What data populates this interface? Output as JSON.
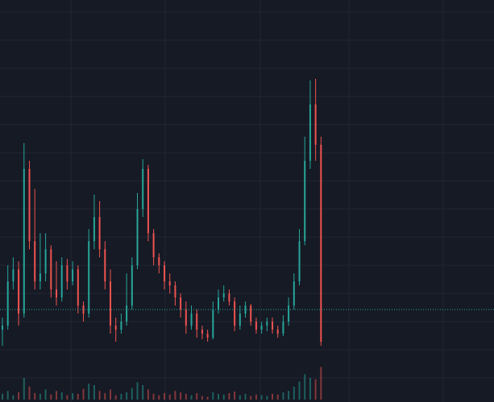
{
  "chart_data": {
    "type": "candlestick",
    "xlim": [
      -0.448,
      91.04
    ],
    "xticks": [
      12.69,
      30.15,
      47.76,
      64.18,
      81.64
    ],
    "ylim": [
      0,
      500
    ],
    "yticks": [
      30,
      65,
      100,
      135,
      170,
      205,
      240,
      275,
      310,
      345,
      380,
      415,
      450,
      485
    ],
    "grid": true,
    "up_color": "#26a69a",
    "down_color": "#ef5350",
    "price_line": 115,
    "price_line_color": "#26a69a",
    "vlim": [
      0,
      100
    ],
    "open": [
      90,
      95,
      150,
      165,
      110,
      290,
      200,
      150,
      160,
      190,
      140,
      130,
      170,
      150,
      165,
      120,
      110,
      200,
      230,
      190,
      150,
      95,
      90,
      100,
      120,
      170,
      240,
      290,
      210,
      180,
      170,
      150,
      145,
      130,
      115,
      95,
      110,
      90,
      85,
      80,
      115,
      130,
      135,
      125,
      95,
      110,
      120,
      100,
      90,
      95,
      100,
      90,
      85,
      100,
      120,
      150,
      200,
      300,
      370,
      320
    ],
    "high": [
      105,
      170,
      180,
      175,
      322,
      300,
      265,
      210,
      210,
      195,
      175,
      180,
      178,
      175,
      170,
      125,
      215,
      258,
      250,
      200,
      165,
      105,
      110,
      160,
      180,
      260,
      302,
      295,
      215,
      185,
      175,
      160,
      150,
      135,
      125,
      120,
      115,
      95,
      90,
      125,
      140,
      145,
      140,
      130,
      120,
      125,
      122,
      105,
      100,
      105,
      105,
      95,
      108,
      130,
      160,
      215,
      330,
      400,
      402,
      330
    ],
    "low": [
      70,
      90,
      140,
      95,
      105,
      190,
      140,
      140,
      150,
      130,
      120,
      125,
      140,
      145,
      110,
      100,
      105,
      190,
      180,
      140,
      85,
      75,
      85,
      95,
      115,
      165,
      230,
      200,
      170,
      160,
      140,
      135,
      120,
      105,
      85,
      90,
      80,
      78,
      75,
      78,
      110,
      125,
      120,
      88,
      90,
      105,
      95,
      85,
      85,
      88,
      85,
      80,
      82,
      95,
      115,
      145,
      195,
      290,
      300,
      70
    ],
    "close": [
      95,
      150,
      165,
      110,
      290,
      200,
      150,
      160,
      190,
      140,
      130,
      170,
      150,
      165,
      120,
      110,
      200,
      230,
      190,
      150,
      95,
      90,
      100,
      120,
      170,
      240,
      290,
      210,
      180,
      170,
      150,
      145,
      130,
      115,
      95,
      110,
      90,
      85,
      80,
      115,
      130,
      135,
      125,
      95,
      110,
      120,
      100,
      90,
      95,
      100,
      90,
      85,
      100,
      120,
      150,
      200,
      300,
      370,
      320,
      75
    ],
    "volume": [
      8,
      12,
      6,
      10,
      30,
      18,
      9,
      8,
      14,
      7,
      12,
      10,
      6,
      9,
      8,
      15,
      22,
      20,
      12,
      9,
      14,
      6,
      8,
      10,
      16,
      24,
      20,
      14,
      8,
      6,
      9,
      7,
      12,
      10,
      8,
      6,
      9,
      5,
      4,
      10,
      8,
      7,
      9,
      11,
      6,
      8,
      5,
      7,
      6,
      5,
      8,
      7,
      10,
      12,
      18,
      25,
      35,
      30,
      28,
      45
    ]
  }
}
